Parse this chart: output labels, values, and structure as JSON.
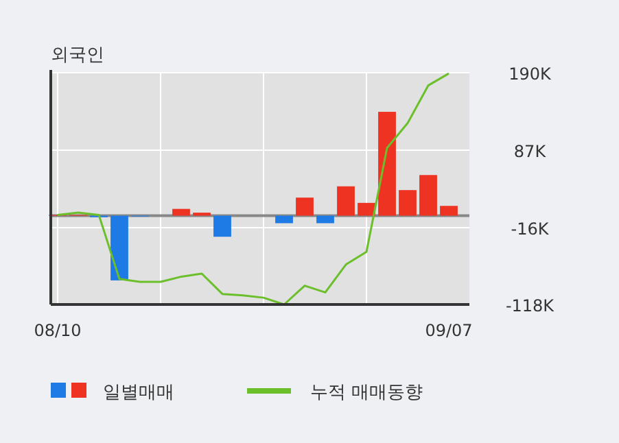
{
  "chart_data": {
    "type": "bar",
    "title": "외국인",
    "categories": [
      "08/10",
      null,
      null,
      null,
      null,
      null,
      null,
      null,
      null,
      null,
      null,
      null,
      null,
      null,
      null,
      null,
      null,
      null,
      null,
      "09/07"
    ],
    "series": [
      {
        "name": "일별매매",
        "colors": [
          "#ee3322",
          "#ee3322",
          "#1e7be6",
          "#1e7be6",
          "#1e7be6",
          "#ee3322",
          "#ee3322",
          "#ee3322",
          "#1e7be6",
          "#ee3322",
          "#ee3322",
          "#1e7be6",
          "#ee3322",
          "#1e7be6",
          "#ee3322",
          "#ee3322",
          "#ee3322",
          "#ee3322",
          "#ee3322",
          "#ee3322"
        ],
        "values": [
          1,
          1,
          -2,
          -86,
          -1,
          0,
          9,
          4,
          -28,
          0,
          0,
          -10,
          24,
          -10,
          39,
          17,
          138,
          34,
          54,
          13
        ]
      },
      {
        "type": "line",
        "name": "누적 매매동향",
        "color": "#6abf2a",
        "values": [
          1,
          4,
          1,
          -84,
          -88,
          -88,
          -81,
          -77,
          -104,
          -106,
          -109,
          -118,
          -93,
          -102,
          -65,
          -48,
          90,
          123,
          173,
          189
        ]
      }
    ],
    "ylim": [
      -118,
      190
    ],
    "yticks": [
      {
        "value": 190,
        "label": "190K"
      },
      {
        "value": 87,
        "label": "87K"
      },
      {
        "value": -16,
        "label": "-16K"
      },
      {
        "value": -118,
        "label": "-118K"
      }
    ],
    "grid": true,
    "legend": "bottom",
    "marker": "none",
    "line_style": "solid"
  }
}
